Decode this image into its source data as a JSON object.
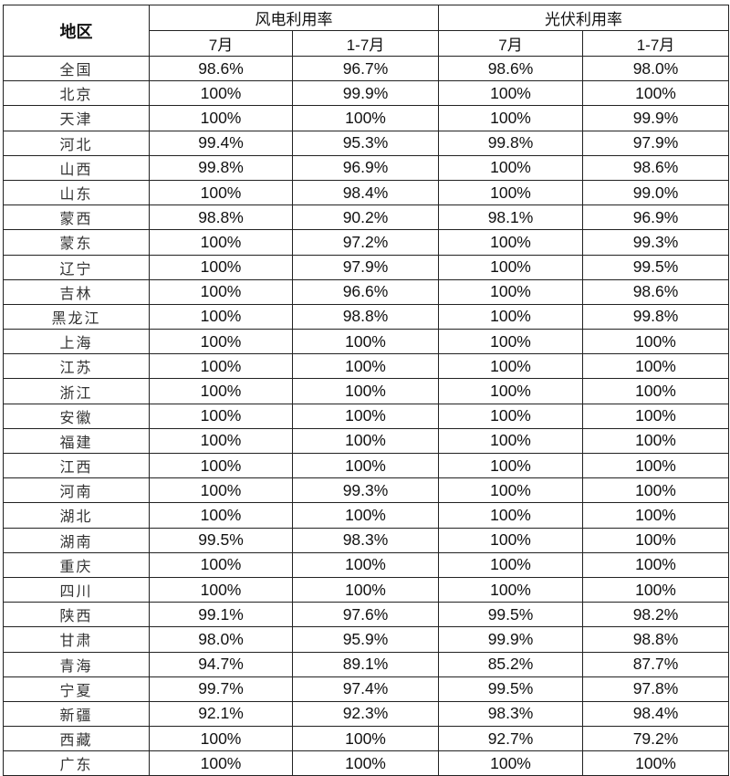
{
  "header": {
    "region": "地区",
    "groups": [
      "风电利用率",
      "光伏利用率"
    ],
    "subcolumns": [
      "7月",
      "1-7月",
      "7月",
      "1-7月"
    ]
  },
  "rows": [
    {
      "region": "全国",
      "values": [
        "98.6%",
        "96.7%",
        "98.6%",
        "98.0%"
      ]
    },
    {
      "region": "北京",
      "values": [
        "100%",
        "99.9%",
        "100%",
        "100%"
      ]
    },
    {
      "region": "天津",
      "values": [
        "100%",
        "100%",
        "100%",
        "99.9%"
      ]
    },
    {
      "region": "河北",
      "values": [
        "99.4%",
        "95.3%",
        "99.8%",
        "97.9%"
      ]
    },
    {
      "region": "山西",
      "values": [
        "99.8%",
        "96.9%",
        "100%",
        "98.6%"
      ]
    },
    {
      "region": "山东",
      "values": [
        "100%",
        "98.4%",
        "100%",
        "99.0%"
      ]
    },
    {
      "region": "蒙西",
      "values": [
        "98.8%",
        "90.2%",
        "98.1%",
        "96.9%"
      ]
    },
    {
      "region": "蒙东",
      "values": [
        "100%",
        "97.2%",
        "100%",
        "99.3%"
      ]
    },
    {
      "region": "辽宁",
      "values": [
        "100%",
        "97.9%",
        "100%",
        "99.5%"
      ]
    },
    {
      "region": "吉林",
      "values": [
        "100%",
        "96.6%",
        "100%",
        "98.6%"
      ]
    },
    {
      "region": "黑龙江",
      "values": [
        "100%",
        "98.8%",
        "100%",
        "99.8%"
      ]
    },
    {
      "region": "上海",
      "values": [
        "100%",
        "100%",
        "100%",
        "100%"
      ]
    },
    {
      "region": "江苏",
      "values": [
        "100%",
        "100%",
        "100%",
        "100%"
      ]
    },
    {
      "region": "浙江",
      "values": [
        "100%",
        "100%",
        "100%",
        "100%"
      ]
    },
    {
      "region": "安徽",
      "values": [
        "100%",
        "100%",
        "100%",
        "100%"
      ]
    },
    {
      "region": "福建",
      "values": [
        "100%",
        "100%",
        "100%",
        "100%"
      ]
    },
    {
      "region": "江西",
      "values": [
        "100%",
        "100%",
        "100%",
        "100%"
      ]
    },
    {
      "region": "河南",
      "values": [
        "100%",
        "99.3%",
        "100%",
        "100%"
      ]
    },
    {
      "region": "湖北",
      "values": [
        "100%",
        "100%",
        "100%",
        "100%"
      ]
    },
    {
      "region": "湖南",
      "values": [
        "99.5%",
        "98.3%",
        "100%",
        "100%"
      ]
    },
    {
      "region": "重庆",
      "values": [
        "100%",
        "100%",
        "100%",
        "100%"
      ]
    },
    {
      "region": "四川",
      "values": [
        "100%",
        "100%",
        "100%",
        "100%"
      ]
    },
    {
      "region": "陕西",
      "values": [
        "99.1%",
        "97.6%",
        "99.5%",
        "98.2%"
      ]
    },
    {
      "region": "甘肃",
      "values": [
        "98.0%",
        "95.9%",
        "99.9%",
        "98.8%"
      ]
    },
    {
      "region": "青海",
      "values": [
        "94.7%",
        "89.1%",
        "85.2%",
        "87.7%"
      ]
    },
    {
      "region": "宁夏",
      "values": [
        "99.7%",
        "97.4%",
        "99.5%",
        "97.8%"
      ]
    },
    {
      "region": "新疆",
      "values": [
        "92.1%",
        "92.3%",
        "98.3%",
        "98.4%"
      ]
    },
    {
      "region": "西藏",
      "values": [
        "100%",
        "100%",
        "92.7%",
        "79.2%"
      ]
    },
    {
      "region": "广东",
      "values": [
        "100%",
        "100%",
        "100%",
        "100%"
      ]
    }
  ]
}
